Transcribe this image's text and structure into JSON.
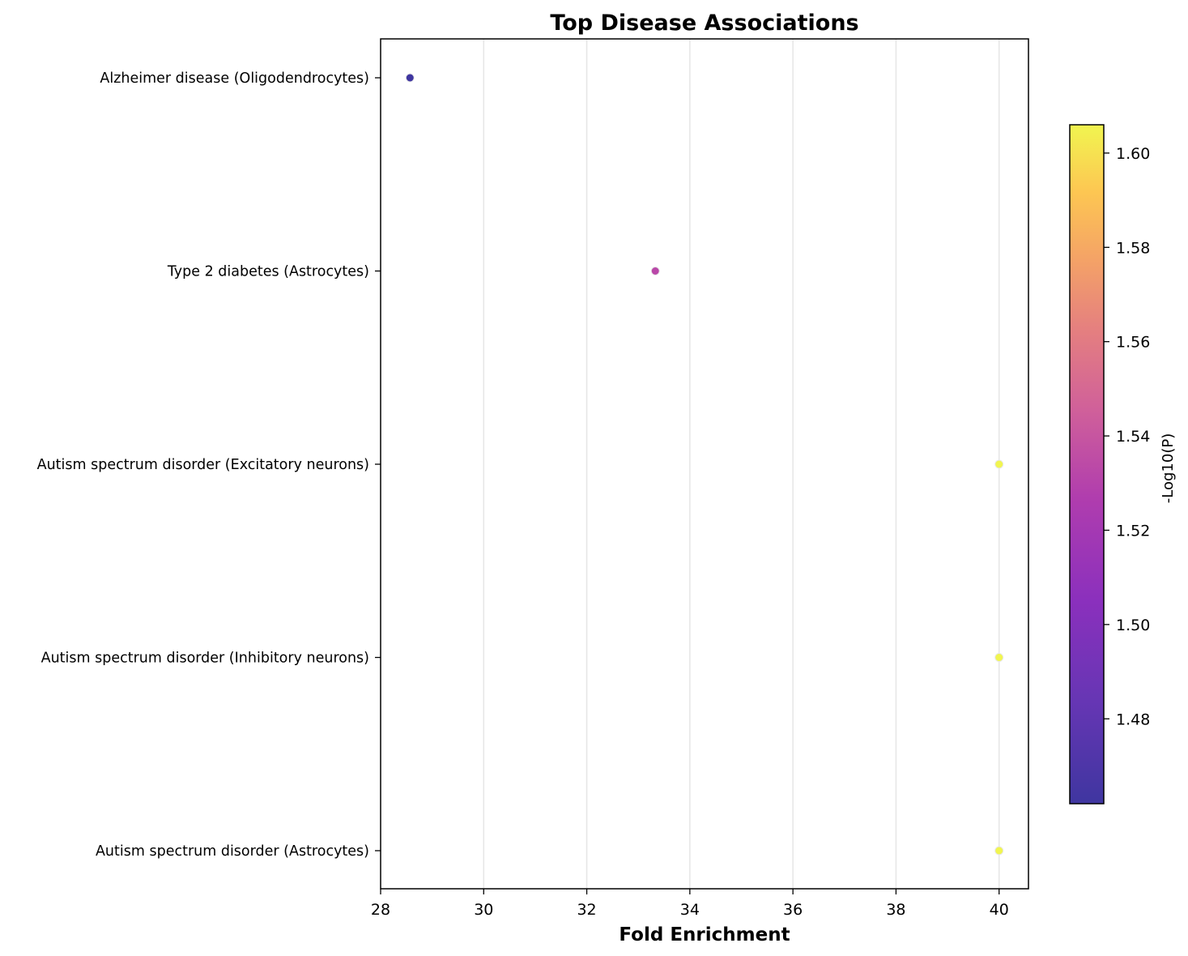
{
  "chart_data": {
    "type": "scatter",
    "title": "Top Disease Associations",
    "xlabel": "Fold Enrichment",
    "ylabel": "",
    "xlim": [
      28,
      40.57
    ],
    "xticks": [
      28,
      30,
      32,
      34,
      36,
      38,
      40
    ],
    "grid": "vertical",
    "categories": [
      "Alzheimer disease (Oligodendrocytes)",
      "Type 2 diabetes (Astrocytes)",
      "Autism spectrum disorder (Excitatory neurons)",
      "Autism spectrum disorder (Inhibitory neurons)",
      "Autism spectrum disorder (Astrocytes)"
    ],
    "points": [
      {
        "category": "Alzheimer disease (Oligodendrocytes)",
        "x": 28.57,
        "color_value": 1.462
      },
      {
        "category": "Type 2 diabetes (Astrocytes)",
        "x": 33.33,
        "color_value": 1.532
      },
      {
        "category": "Autism spectrum disorder (Excitatory neurons)",
        "x": 40.0,
        "color_value": 1.606
      },
      {
        "category": "Autism spectrum disorder (Inhibitory neurons)",
        "x": 40.0,
        "color_value": 1.606
      },
      {
        "category": "Autism spectrum disorder (Astrocytes)",
        "x": 40.0,
        "color_value": 1.606
      }
    ],
    "colorbar": {
      "label": "-Log10(P)",
      "range": [
        1.462,
        1.606
      ],
      "ticks": [
        1.48,
        1.5,
        1.52,
        1.54,
        1.56,
        1.58,
        1.6
      ],
      "tick_labels": [
        "1.48",
        "1.50",
        "1.52",
        "1.54",
        "1.56",
        "1.58",
        "1.60"
      ],
      "colormap": "plasma"
    }
  }
}
